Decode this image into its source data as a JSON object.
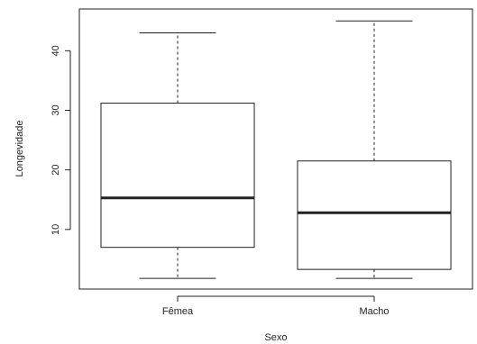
{
  "chart_data": {
    "type": "boxplot",
    "xlabel": "Sexo",
    "ylabel": "Longevidade",
    "ylim": [
      0,
      47
    ],
    "yticks": [
      10,
      20,
      30,
      40
    ],
    "grid": false,
    "categories": [
      "Fêmea",
      "Macho"
    ],
    "boxes": [
      {
        "category": "Fêmea",
        "whisker_low": 1.8,
        "q1": 7,
        "median": 15.3,
        "q3": 31.2,
        "whisker_high": 43
      },
      {
        "category": "Macho",
        "whisker_low": 1.8,
        "q1": 3.3,
        "median": 12.8,
        "q3": 21.5,
        "whisker_high": 45
      }
    ]
  }
}
